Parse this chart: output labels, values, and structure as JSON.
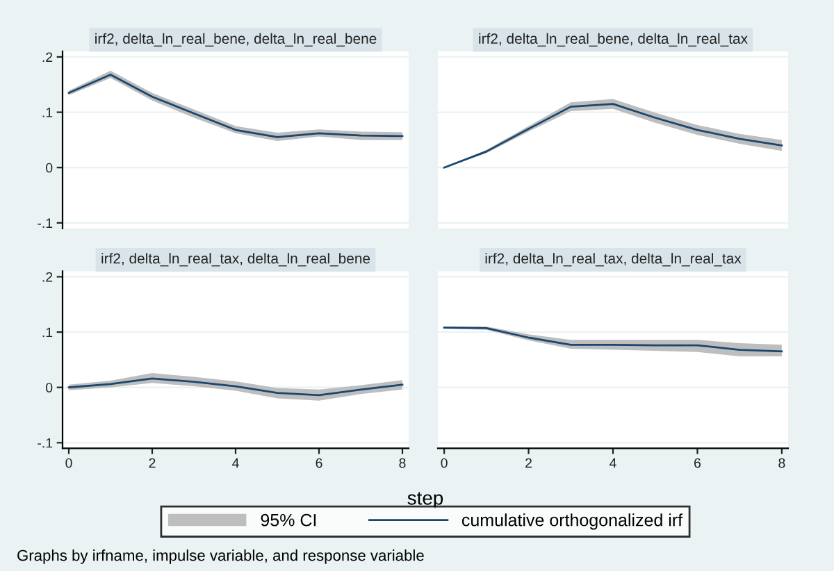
{
  "chart_data": [
    {
      "type": "line",
      "title": "irf2, delta_ln_real_bene, delta_ln_real_bene",
      "x": [
        0,
        1,
        2,
        3,
        4,
        5,
        6,
        7,
        8
      ],
      "xlim": [
        -0.15,
        8.15
      ],
      "ylim": [
        -0.11,
        0.21
      ],
      "yticks": [
        {
          "value": -0.1,
          "label": "-.1"
        },
        0,
        {
          "value": 0.1,
          "label": ".1"
        },
        {
          "value": 0.2,
          "label": ".2"
        }
      ],
      "grid": "y",
      "tick_labels": "y",
      "series": [
        {
          "color": "#1a476f",
          "values": [
            0.135,
            0.168,
            0.128,
            0.098,
            0.068,
            0.055,
            0.062,
            0.058,
            0.057
          ],
          "lower": [
            0.131,
            0.162,
            0.121,
            0.09,
            0.062,
            0.048,
            0.056,
            0.05,
            0.05
          ],
          "upper": [
            0.139,
            0.175,
            0.135,
            0.105,
            0.075,
            0.063,
            0.069,
            0.065,
            0.064
          ]
        }
      ]
    },
    {
      "type": "line",
      "title": "irf2, delta_ln_real_bene, delta_ln_real_tax",
      "x": [
        0,
        1,
        2,
        3,
        4,
        5,
        6,
        7,
        8
      ],
      "xlim": [
        -0.15,
        8.15
      ],
      "ylim": [
        -0.11,
        0.21
      ],
      "yticks": [
        {
          "value": -0.1,
          "label": null
        },
        {
          "value": 0,
          "label": null
        },
        {
          "value": 0.1,
          "label": null
        },
        {
          "value": 0.2,
          "label": null
        }
      ],
      "grid": "y",
      "tick_labels": false,
      "series": [
        {
          "color": "#1a476f",
          "values": [
            0,
            0.029,
            0.07,
            0.11,
            0.115,
            0.09,
            0.068,
            0.052,
            0.04
          ],
          "lower": [
            0,
            0.026,
            0.065,
            0.102,
            0.106,
            0.081,
            0.059,
            0.043,
            0.03
          ],
          "upper": [
            0,
            0.032,
            0.075,
            0.118,
            0.124,
            0.099,
            0.077,
            0.061,
            0.05
          ]
        }
      ]
    },
    {
      "type": "line",
      "title": "irf2, delta_ln_real_tax, delta_ln_real_bene",
      "x": [
        0,
        1,
        2,
        3,
        4,
        5,
        6,
        7,
        8
      ],
      "xlim": [
        -0.15,
        8.15
      ],
      "xticks": [
        0,
        2,
        4,
        6,
        8
      ],
      "ylim": [
        -0.11,
        0.21
      ],
      "yticks": [
        {
          "value": -0.1,
          "label": "-.1"
        },
        0,
        {
          "value": 0.1,
          "label": ".1"
        },
        {
          "value": 0.2,
          "label": ".2"
        }
      ],
      "grid": "y",
      "series": [
        {
          "color": "#1a476f",
          "values": [
            0,
            0.006,
            0.016,
            0.01,
            0.002,
            -0.01,
            -0.014,
            -0.004,
            0.005
          ],
          "lower": [
            -0.005,
            0.0,
            0.008,
            0.002,
            -0.006,
            -0.02,
            -0.024,
            -0.012,
            -0.004
          ],
          "upper": [
            0.005,
            0.012,
            0.026,
            0.019,
            0.011,
            -0.001,
            -0.004,
            0.004,
            0.013
          ]
        }
      ]
    },
    {
      "type": "line",
      "title": "irf2, delta_ln_real_tax, delta_ln_real_tax",
      "x": [
        0,
        1,
        2,
        3,
        4,
        5,
        6,
        7,
        8
      ],
      "xlim": [
        -0.15,
        8.15
      ],
      "xticks": [
        0,
        2,
        4,
        6,
        8
      ],
      "ylim": [
        -0.11,
        0.21
      ],
      "yticks": [
        {
          "value": -0.1,
          "label": null
        },
        {
          "value": 0,
          "label": null
        },
        {
          "value": 0.1,
          "label": null
        },
        {
          "value": 0.2,
          "label": null
        }
      ],
      "grid": "y",
      "tick_labels": "x",
      "xlabel": "step",
      "legend": "bottom",
      "annotations": [
        "95% CI",
        "Graphs by irfname, impulse variable, and response variable"
      ],
      "series": [
        {
          "name": "cumulative orthogonalized irf",
          "color": "#1a476f",
          "values": [
            0.108,
            0.107,
            0.09,
            0.077,
            0.077,
            0.076,
            0.076,
            0.068,
            0.065
          ],
          "lower": [
            0.106,
            0.104,
            0.085,
            0.07,
            0.068,
            0.066,
            0.064,
            0.056,
            0.056
          ],
          "upper": [
            0.11,
            0.11,
            0.096,
            0.086,
            0.086,
            0.086,
            0.086,
            0.08,
            0.077
          ]
        }
      ]
    }
  ]
}
